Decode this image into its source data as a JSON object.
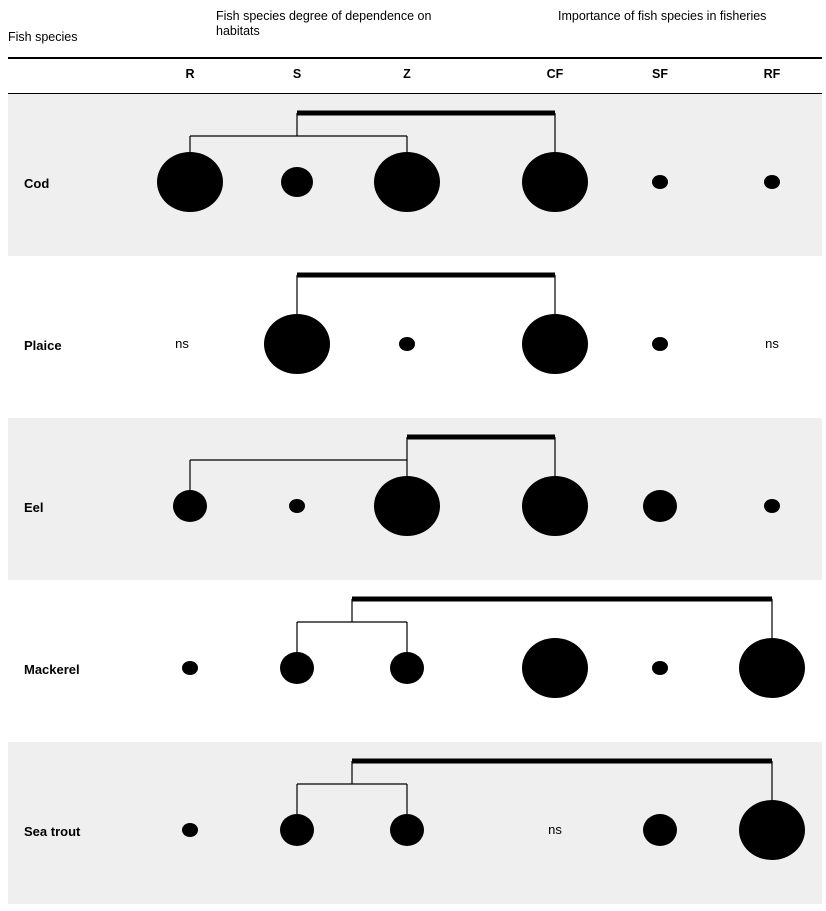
{
  "header": {
    "species": "Fish species",
    "dependence": "Fish species degree of dependence on habitats",
    "importance": "Importance of fish species in fisheries"
  },
  "columns": [
    "R",
    "S",
    "Z",
    "CF",
    "SF",
    "RF"
  ],
  "ns_label": "ns",
  "rows": [
    {
      "species": "Cod",
      "marks": [
        "large",
        "small",
        "large",
        "large",
        "tiny",
        "tiny"
      ],
      "tree": {
        "thick": [
          1,
          3
        ],
        "thin": [
          [
            0,
            2
          ]
        ]
      }
    },
    {
      "species": "Plaice",
      "marks": [
        "ns",
        "large",
        "tiny",
        "large",
        "tiny",
        "ns"
      ],
      "tree": {
        "thick": [
          1,
          3
        ],
        "thin": []
      }
    },
    {
      "species": "Eel",
      "marks": [
        "medium",
        "tiny",
        "large",
        "large",
        "medium",
        "tiny"
      ],
      "tree": {
        "thick": [
          2,
          3
        ],
        "thin": [
          [
            0,
            2
          ]
        ]
      }
    },
    {
      "species": "Mackerel",
      "marks": [
        "tiny",
        "medium",
        "medium",
        "large",
        "tiny",
        "large"
      ],
      "tree": {
        "thick": [
          1.5,
          5
        ],
        "thin": [
          [
            1,
            2
          ]
        ]
      }
    },
    {
      "species": "Sea trout",
      "marks": [
        "tiny",
        "medium",
        "medium",
        "ns",
        "medium",
        "large"
      ],
      "tree": {
        "thick": [
          1.5,
          5
        ],
        "thin": [
          [
            1,
            2
          ]
        ]
      }
    }
  ]
}
